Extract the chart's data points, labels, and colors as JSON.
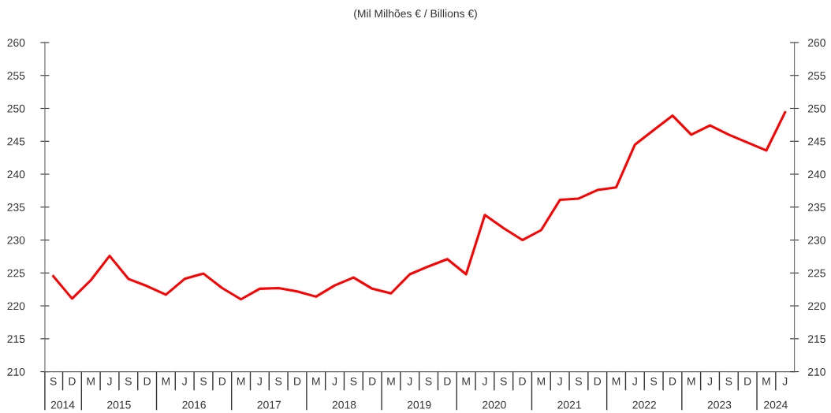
{
  "chart_data": {
    "type": "line",
    "title": "(Mil Milhões € / Billions €)",
    "categories": [
      "S",
      "D",
      "M",
      "J",
      "S",
      "D",
      "M",
      "J",
      "S",
      "D",
      "M",
      "J",
      "S",
      "D",
      "M",
      "J",
      "S",
      "D",
      "M",
      "J",
      "S",
      "D",
      "M",
      "J",
      "S",
      "D",
      "M",
      "J",
      "S",
      "D",
      "M",
      "J",
      "S",
      "D",
      "M",
      "J",
      "S",
      "D",
      "M",
      "J"
    ],
    "annotations": [
      "2014",
      "2015",
      "2016",
      "2017",
      "2018",
      "2019",
      "2020",
      "2021",
      "2022",
      "2023",
      "2024"
    ],
    "series": [
      {
        "color": "#ff0000",
        "values": [
          224.5,
          221.1,
          223.9,
          227.6,
          224.1,
          223.0,
          221.7,
          224.1,
          224.9,
          222.7,
          221.0,
          222.6,
          222.7,
          222.2,
          221.4,
          223.1,
          224.3,
          222.6,
          221.9,
          224.8,
          226.0,
          227.1,
          224.8,
          233.8,
          231.8,
          230.0,
          231.5,
          236.1,
          236.3,
          237.6,
          238.0,
          244.5,
          246.7,
          248.9,
          246.0,
          247.4,
          246.0,
          244.8,
          243.6,
          249.4
        ]
      }
    ],
    "ylim": [
      210,
      260
    ],
    "yticks": [
      210,
      215,
      220,
      225,
      230,
      235,
      240,
      245,
      250,
      255,
      260
    ],
    "y2lim": [
      210,
      260
    ],
    "y2ticks": [
      210,
      215,
      220,
      225,
      230,
      235,
      240,
      245,
      250,
      255,
      260
    ],
    "grid": false,
    "legend": false,
    "marker": "none",
    "line_style": "solid"
  }
}
